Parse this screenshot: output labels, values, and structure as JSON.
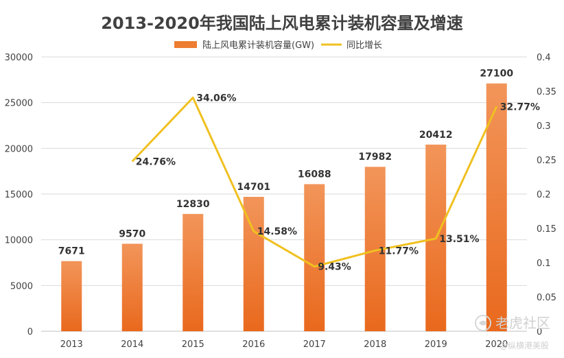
{
  "chart_data": {
    "type": "bar",
    "title": "2013-2020年我国陆上风电累计装机容量及增速",
    "categories": [
      "2013",
      "2014",
      "2015",
      "2016",
      "2017",
      "2018",
      "2019",
      "2020"
    ],
    "series": [
      {
        "name": "陆上风电累计装机容量(GW)",
        "type": "bar",
        "axis": "left",
        "values": [
          7671,
          9570,
          12830,
          14701,
          16088,
          17982,
          20412,
          27100
        ],
        "labels": [
          "7671",
          "9570",
          "12830",
          "14701",
          "16088",
          "17982",
          "20412",
          "27100"
        ],
        "color": "#ed7d31"
      },
      {
        "name": "同比增长",
        "type": "line",
        "axis": "right",
        "values": [
          null,
          0.2476,
          0.3406,
          0.1458,
          0.0943,
          0.1177,
          0.1351,
          0.3277
        ],
        "labels": [
          "",
          "24.76%",
          "34.06%",
          "14.58%",
          "9.43%",
          "11.77%",
          "13.51%",
          "32.77%"
        ],
        "color": "#f0c020"
      }
    ],
    "y_left": {
      "min": 0,
      "max": 30000,
      "ticks": [
        "0",
        "5000",
        "10000",
        "15000",
        "20000",
        "25000",
        "30000"
      ]
    },
    "y_right": {
      "min": 0,
      "max": 0.4,
      "ticks": [
        "0",
        "0.05",
        "0.1",
        "0.15",
        "0.2",
        "0.25",
        "0.3",
        "0.35",
        "0.4"
      ]
    },
    "grid": true,
    "legend_position": "top-center"
  },
  "watermark": {
    "brand": "老虎社区",
    "handle": "@纵横港美股"
  }
}
